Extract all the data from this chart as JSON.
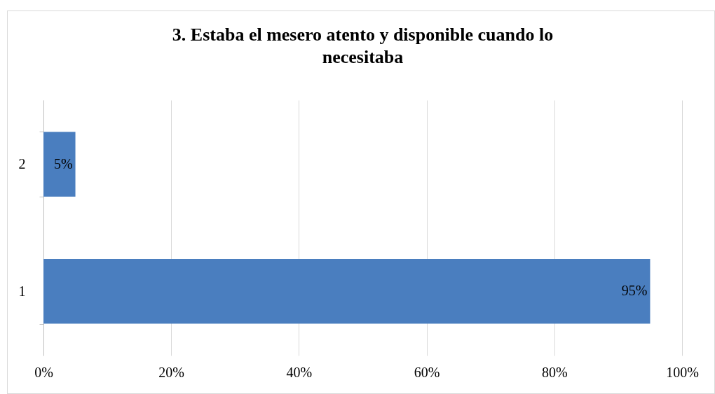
{
  "chart_data": {
    "type": "bar",
    "orientation": "horizontal",
    "title": "3. Estaba el mesero atento y disponible cuando lo necesitaba",
    "categories": [
      "2",
      "1"
    ],
    "values": [
      5,
      95
    ],
    "value_labels": [
      "5%",
      "95%"
    ],
    "color": "#4a7ebf",
    "xlim": [
      0,
      100
    ],
    "xticks": [
      {
        "value": 0,
        "label": "0%"
      },
      {
        "value": 20,
        "label": "20%"
      },
      {
        "value": 40,
        "label": "40%"
      },
      {
        "value": 60,
        "label": "60%"
      },
      {
        "value": 80,
        "label": "80%"
      },
      {
        "value": 100,
        "label": "100%"
      }
    ],
    "grid": "x"
  }
}
